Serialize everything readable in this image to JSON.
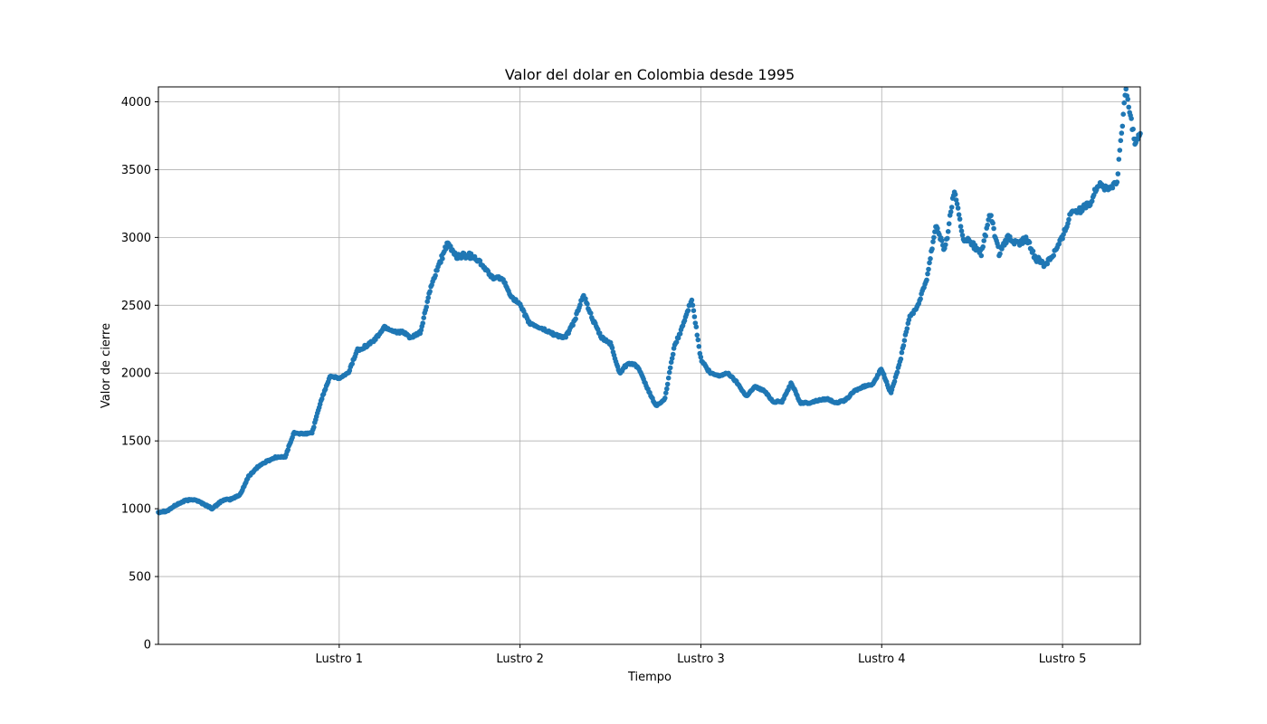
{
  "chart_data": {
    "type": "scatter",
    "title": "Valor del dolar en Colombia desde 1995",
    "xlabel": "Tiempo",
    "ylabel": "Valor de cierre",
    "xlim": [
      0,
      5.43
    ],
    "ylim": [
      0,
      4110
    ],
    "x_ticks": [
      {
        "value": 1,
        "label": "Lustro 1"
      },
      {
        "value": 2,
        "label": "Lustro 2"
      },
      {
        "value": 3,
        "label": "Lustro 3"
      },
      {
        "value": 4,
        "label": "Lustro 4"
      },
      {
        "value": 5,
        "label": "Lustro 5"
      }
    ],
    "y_ticks": [
      0,
      500,
      1000,
      1500,
      2000,
      2500,
      3000,
      3500,
      4000
    ],
    "grid": true,
    "marker_color": "#1f77b4",
    "x_anchors": [
      0,
      0.05,
      0.1,
      0.15,
      0.2,
      0.25,
      0.3,
      0.35,
      0.4,
      0.45,
      0.5,
      0.55,
      0.6,
      0.65,
      0.7,
      0.75,
      0.8,
      0.85,
      0.9,
      0.95,
      1.0,
      1.05,
      1.1,
      1.15,
      1.2,
      1.25,
      1.3,
      1.35,
      1.4,
      1.45,
      1.5,
      1.55,
      1.6,
      1.65,
      1.7,
      1.75,
      1.8,
      1.85,
      1.9,
      1.95,
      2.0,
      2.05,
      2.1,
      2.15,
      2.2,
      2.25,
      2.3,
      2.35,
      2.4,
      2.45,
      2.5,
      2.55,
      2.6,
      2.65,
      2.7,
      2.75,
      2.8,
      2.85,
      2.9,
      2.95,
      3.0,
      3.05,
      3.1,
      3.15,
      3.2,
      3.25,
      3.3,
      3.35,
      3.4,
      3.45,
      3.5,
      3.55,
      3.6,
      3.65,
      3.7,
      3.75,
      3.8,
      3.85,
      3.9,
      3.95,
      4.0,
      4.05,
      4.1,
      4.15,
      4.2,
      4.25,
      4.3,
      4.35,
      4.4,
      4.45,
      4.5,
      4.55,
      4.6,
      4.65,
      4.7,
      4.75,
      4.8,
      4.85,
      4.9,
      4.95,
      5.0,
      5.05,
      5.1,
      5.15,
      5.2,
      5.25,
      5.3,
      5.35,
      5.4,
      5.43
    ],
    "y_anchors": [
      975,
      985,
      1030,
      1060,
      1070,
      1035,
      1000,
      1060,
      1070,
      1100,
      1240,
      1310,
      1350,
      1380,
      1380,
      1560,
      1550,
      1560,
      1800,
      1980,
      1960,
      2000,
      2170,
      2200,
      2250,
      2340,
      2310,
      2300,
      2260,
      2300,
      2600,
      2800,
      2950,
      2860,
      2870,
      2860,
      2780,
      2700,
      2700,
      2570,
      2500,
      2370,
      2340,
      2310,
      2280,
      2260,
      2380,
      2580,
      2400,
      2260,
      2220,
      2000,
      2080,
      2050,
      1900,
      1760,
      1800,
      2180,
      2350,
      2550,
      2100,
      2000,
      1980,
      2000,
      1930,
      1830,
      1900,
      1870,
      1790,
      1790,
      1930,
      1780,
      1780,
      1800,
      1810,
      1780,
      1800,
      1870,
      1900,
      1920,
      2030,
      1850,
      2070,
      2400,
      2500,
      2700,
      3100,
      2900,
      3350,
      3000,
      2950,
      2880,
      3170,
      2880,
      3000,
      2950,
      2990,
      2850,
      2800,
      2880,
      3000,
      3200,
      3200,
      3250,
      3400,
      3350,
      3400,
      4100,
      3700,
      3780
    ],
    "n_points": 1100
  }
}
